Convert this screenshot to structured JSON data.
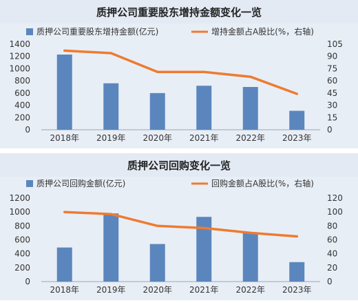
{
  "chart_data": [
    {
      "type": "bar",
      "title": "质押公司重要股东增持金额变化一览",
      "categories": [
        "2018年",
        "2019年",
        "2020年",
        "2021年",
        "2022年",
        "2023年"
      ],
      "series": [
        {
          "name": "质押公司重要股东增持金额(亿元)",
          "type": "bar",
          "axis": "left",
          "values": [
            1230,
            760,
            600,
            720,
            700,
            310
          ]
        },
        {
          "name": "增持金额占A股比(%，右轴)",
          "type": "line",
          "axis": "right",
          "values": [
            97,
            94,
            71,
            71,
            65,
            44
          ]
        }
      ],
      "ylim_left": [
        0,
        1400
      ],
      "yticks_left": [
        "0",
        "200",
        "400",
        "600",
        "800",
        "1000",
        "1200",
        "1400"
      ],
      "ylim_right": [
        0,
        105
      ],
      "yticks_right": [
        "0",
        "15",
        "30",
        "45",
        "60",
        "75",
        "90",
        "105"
      ],
      "legend_position": "top",
      "grid": false
    },
    {
      "type": "bar",
      "title": "质押公司回购变化一览",
      "categories": [
        "2018年",
        "2019年",
        "2020年",
        "2021年",
        "2022年",
        "2023年"
      ],
      "series": [
        {
          "name": "质押公司回购金额(亿元)",
          "type": "bar",
          "axis": "left",
          "values": [
            490,
            980,
            540,
            930,
            710,
            280
          ]
        },
        {
          "name": "回购金额占A股比(%，右轴)",
          "type": "line",
          "axis": "right",
          "values": [
            100,
            97,
            80,
            77,
            70,
            65
          ]
        }
      ],
      "ylim_left": [
        0,
        1200
      ],
      "yticks_left": [
        "0",
        "200",
        "400",
        "600",
        "800",
        "1000",
        "1200"
      ],
      "ylim_right": [
        0,
        120
      ],
      "yticks_right": [
        "0",
        "20",
        "40",
        "60",
        "80",
        "100",
        "120"
      ],
      "legend_position": "top",
      "grid": false
    }
  ],
  "colors": {
    "bar": "#5b86bd",
    "line": "#ee7b30",
    "header_bg": "#e3eaf4",
    "panel_bg": "#e8eef6",
    "axis_text": "#333333",
    "title_text": "#222222"
  }
}
